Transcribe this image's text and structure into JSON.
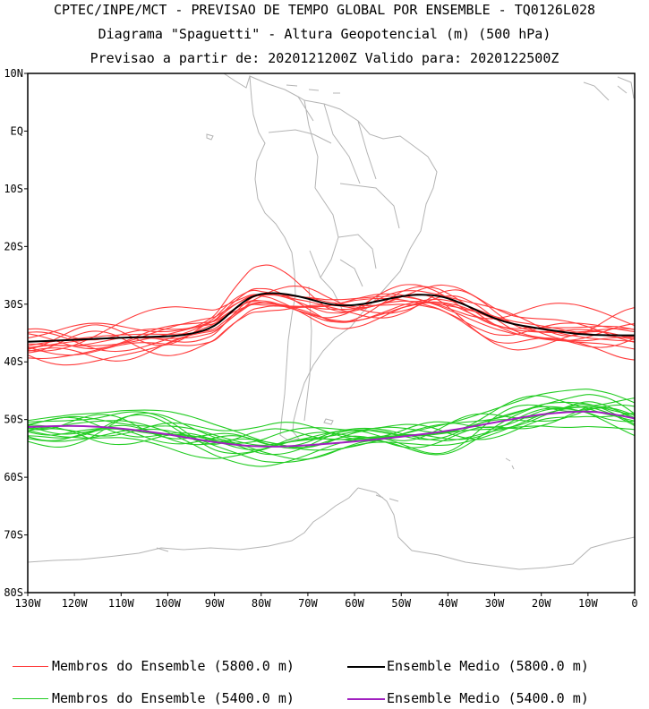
{
  "titles": {
    "line1": "CPTEC/INPE/MCT - PREVISAO DE TEMPO GLOBAL POR ENSEMBLE - TQ0126L028",
    "line2": "Diagrama \"Spaguetti\" - Altura Geopotencial (m) (500 hPa)",
    "line3": "Previsao a partir de: 2020121200Z  Valido para: 2020122500Z"
  },
  "axes": {
    "lat_labels": [
      "10N",
      "EQ",
      "10S",
      "20S",
      "30S",
      "40S",
      "50S",
      "60S",
      "70S",
      "80S"
    ],
    "lon_labels": [
      "130W",
      "120W",
      "110W",
      "100W",
      "90W",
      "80W",
      "70W",
      "60W",
      "50W",
      "40W",
      "30W",
      "20W",
      "10W",
      "0"
    ],
    "lat_range": [
      -80,
      10
    ],
    "lon_range": [
      -130,
      0
    ]
  },
  "colors": {
    "members_5800": "#ff3b3b",
    "mean_5800": "#000000",
    "members_5400": "#22cc22",
    "mean_5400": "#a020c0",
    "coast": "#b4b4b4"
  },
  "legend": {
    "members_5800": "Membros do Ensemble (5800.0 m)",
    "mean_5800": "Ensemble Medio (5800.0 m)",
    "members_5400": "Membros do Ensemble (5400.0 m)",
    "mean_5400": "Ensemble Medio (5400.0 m)"
  },
  "chart_data": {
    "type": "line",
    "x_unit": "longitude (deg E, negative = W)",
    "y_unit": "latitude (deg, negative = S)",
    "series": [
      {
        "name": "Ensemble Medio (5800.0 m)",
        "x": [
          -130,
          -120,
          -110,
          -100,
          -95,
          -90,
          -86,
          -82,
          -78,
          -74,
          -70,
          -66,
          -62,
          -58,
          -54,
          -50,
          -46,
          -42,
          -38,
          -34,
          -30,
          -26,
          -22,
          -18,
          -14,
          -10,
          -5,
          0
        ],
        "y": [
          -36.5,
          -36.2,
          -35.8,
          -35.6,
          -35.2,
          -34.0,
          -31.0,
          -28.5,
          -28.0,
          -28.3,
          -29.0,
          -30.0,
          -30.3,
          -30.0,
          -29.3,
          -28.6,
          -28.3,
          -28.5,
          -29.5,
          -31.0,
          -32.5,
          -33.5,
          -34.0,
          -34.5,
          -35.0,
          -35.3,
          -35.4,
          -35.4
        ]
      },
      {
        "name": "Ensemble Medio (5400.0 m)",
        "x": [
          -130,
          -120,
          -110,
          -100,
          -90,
          -80,
          -70,
          -60,
          -50,
          -40,
          -30,
          -20,
          -10,
          -5,
          0
        ],
        "y": [
          -51.3,
          -51.0,
          -51.5,
          -52.5,
          -54.0,
          -54.8,
          -54.5,
          -53.8,
          -53.0,
          -52.0,
          -50.5,
          -49.0,
          -48.5,
          -49.0,
          -49.8
        ]
      }
    ]
  }
}
